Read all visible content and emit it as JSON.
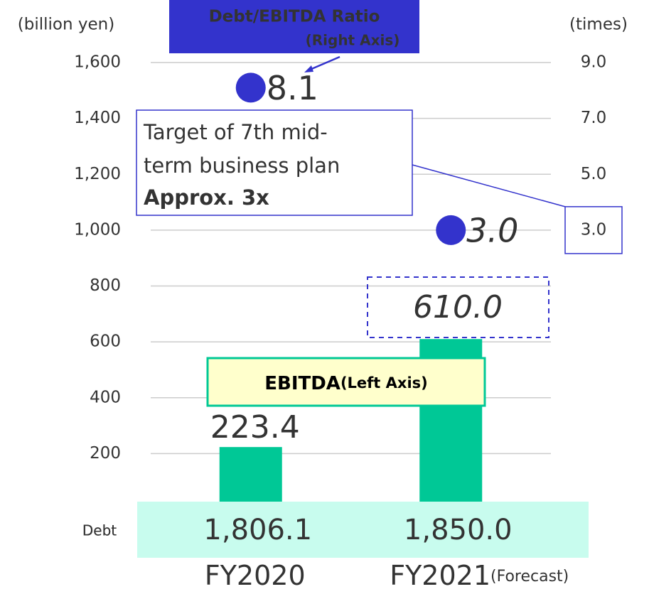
{
  "chart_data": {
    "type": "bar",
    "y_axis_label": "(billion yen)",
    "y2_axis_label": "(times)",
    "categories": [
      "FY2020",
      "FY2021"
    ],
    "category_notes": [
      null,
      "(Forecast)"
    ],
    "ylim": [
      0,
      1600
    ],
    "yticks": [
      200,
      400,
      600,
      800,
      {
        "value": 1000,
        "label": "1,000"
      },
      {
        "value": 1200,
        "label": "1,200"
      },
      {
        "value": 1400,
        "label": "1,400"
      },
      {
        "value": 1600,
        "label": "1,600"
      }
    ],
    "y2lim": [
      -7,
      9
    ],
    "y2ticks": [
      {
        "value": 3,
        "label": "3.0"
      },
      {
        "value": 5,
        "label": "5.0"
      },
      {
        "value": 7,
        "label": "7.0"
      },
      {
        "value": 9,
        "label": "9.0"
      }
    ],
    "grid": true,
    "series": [
      {
        "name": "EBITDA",
        "axis_note": "(Left Axis)",
        "type": "bar",
        "color": "#00c896",
        "values": [
          223.4,
          610
        ],
        "value_labels": [
          "223.4",
          "610.0"
        ]
      },
      {
        "name": "Debt/EBITDA Ratio",
        "axis_note": "(Right Axis)",
        "type": "scatter",
        "axis": "y2",
        "color": "#3333cc",
        "values": [
          8.1,
          3.0
        ],
        "value_labels": [
          "8.1",
          "3.0"
        ]
      }
    ],
    "debt": {
      "label": "Debt",
      "values": [
        1806.1,
        1850.0
      ],
      "value_labels": [
        "1,806.1",
        "1,850.0"
      ]
    },
    "annotation": {
      "lines": [
        "Target of 7th mid-",
        "term business plan"
      ],
      "emphasis": "Approx. 3x",
      "y2": 3
    }
  }
}
